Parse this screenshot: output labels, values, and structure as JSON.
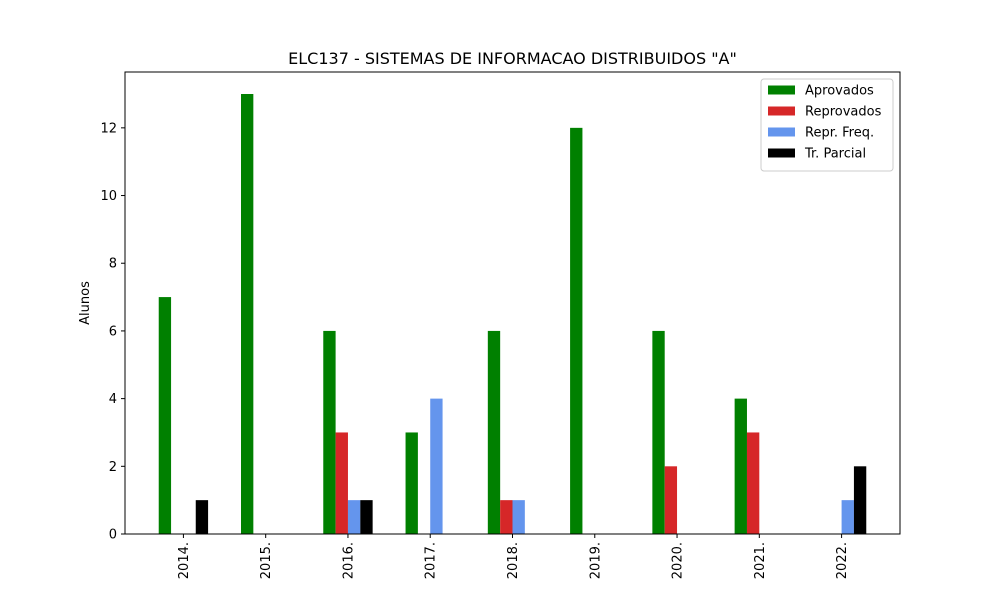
{
  "chart_data": {
    "type": "bar",
    "title": "ELC137 - SISTEMAS DE INFORMACAO DISTRIBUIDOS \"A\"",
    "xlabel": "",
    "ylabel": "Alunos",
    "ylim": [
      0,
      13.65
    ],
    "yticks": [
      0,
      2,
      4,
      6,
      8,
      10,
      12
    ],
    "categories": [
      "2014.",
      "2015.",
      "2016.",
      "2017.",
      "2018.",
      "2019.",
      "2020.",
      "2021.",
      "2022."
    ],
    "grid": false,
    "legend_position": "top-right",
    "series": [
      {
        "name": "Aprovados",
        "color": "#008000",
        "values": [
          7,
          13,
          6,
          3,
          6,
          12,
          6,
          4,
          0
        ]
      },
      {
        "name": "Reprovados",
        "color": "#d62728",
        "values": [
          0,
          0,
          3,
          0,
          1,
          0,
          2,
          3,
          0
        ]
      },
      {
        "name": "Repr. Freq.",
        "color": "#6495ed",
        "values": [
          0,
          0,
          1,
          4,
          1,
          0,
          0,
          0,
          1
        ]
      },
      {
        "name": "Tr. Parcial",
        "color": "#000000",
        "values": [
          1,
          0,
          1,
          0,
          0,
          0,
          0,
          0,
          2
        ]
      }
    ]
  }
}
